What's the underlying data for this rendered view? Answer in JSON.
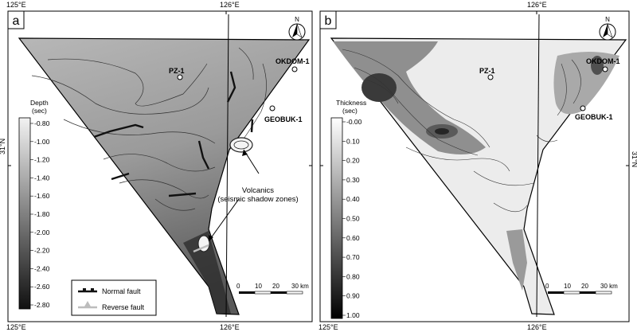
{
  "panel_a": {
    "letter": "a",
    "coords": {
      "top_left": "125°E",
      "top_mid": "126°E",
      "bottom_left": "125°E",
      "bottom_mid": "126°E",
      "right_lat": "31°N"
    },
    "wells": [
      "PZ-1",
      "OKDOM-1",
      "GEOBUK-1"
    ],
    "colorbar": {
      "title_line1": "Depth",
      "title_line2": "(sec)",
      "ticks": [
        "-0.80",
        "-1.00",
        "-1.20",
        "-1.40",
        "-1.60",
        "-1.80",
        "-2.00",
        "-2.20",
        "-2.40",
        "-2.60",
        "-2.80"
      ]
    },
    "annotation_line1": "Volcanics",
    "annotation_line2": "(seismic shadow zones)",
    "legend": {
      "normal_fault": "Normal fault",
      "reverse_fault": "Reverse fault"
    },
    "scale": {
      "ticks": [
        "0",
        "10",
        "20",
        "30 km"
      ]
    },
    "north": "N"
  },
  "panel_b": {
    "letter": "b",
    "coords": {
      "top_mid": "126°E",
      "bottom_left": "125°E",
      "bottom_mid": "126°E",
      "right_lat": "31°N"
    },
    "wells": [
      "PZ-1",
      "OKDOM-1",
      "GEOBUK-1"
    ],
    "colorbar": {
      "title_line1": "Thickness",
      "title_line2": "(sec)",
      "ticks": [
        "-0.00",
        "0.10",
        "0.20",
        "0.30",
        "0.40",
        "0.50",
        "0.60",
        "0.70",
        "0.80",
        "0.90",
        "1.00"
      ]
    },
    "scale": {
      "ticks": [
        "0",
        "10",
        "20",
        "30 km"
      ]
    },
    "north": "N"
  }
}
